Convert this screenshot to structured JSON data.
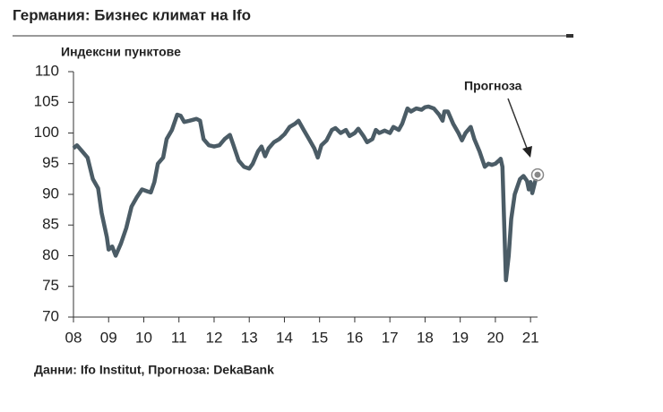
{
  "chart_data": {
    "type": "line",
    "title": "Германия: Бизнес климат на Ifo",
    "y_label": "Индексни пунктове",
    "source": "Данни: Ifo Institut, Прогноза: DekaBank",
    "annotation": "Прогноза",
    "color": "#4b5c66",
    "x": [
      2008.0,
      2008.1,
      2008.25,
      2008.4,
      2008.55,
      2008.7,
      2008.8,
      2008.95,
      2009.0,
      2009.1,
      2009.2,
      2009.35,
      2009.5,
      2009.65,
      2009.8,
      2009.95,
      2010.1,
      2010.2,
      2010.3,
      2010.4,
      2010.55,
      2010.65,
      2010.8,
      2010.95,
      2011.05,
      2011.15,
      2011.3,
      2011.5,
      2011.6,
      2011.7,
      2011.85,
      2012.0,
      2012.15,
      2012.3,
      2012.45,
      2012.55,
      2012.7,
      2012.85,
      2013.0,
      2013.1,
      2013.25,
      2013.35,
      2013.45,
      2013.55,
      2013.7,
      2013.85,
      2014.0,
      2014.15,
      2014.3,
      2014.4,
      2014.55,
      2014.7,
      2014.85,
      2014.95,
      2015.05,
      2015.2,
      2015.35,
      2015.45,
      2015.6,
      2015.75,
      2015.85,
      2016.0,
      2016.1,
      2016.25,
      2016.35,
      2016.5,
      2016.6,
      2016.7,
      2016.85,
      2017.0,
      2017.1,
      2017.25,
      2017.35,
      2017.5,
      2017.6,
      2017.75,
      2017.9,
      2018.0,
      2018.1,
      2018.25,
      2018.4,
      2018.5,
      2018.55,
      2018.65,
      2018.8,
      2018.95,
      2019.05,
      2019.15,
      2019.3,
      2019.4,
      2019.55,
      2019.7,
      2019.8,
      2019.9,
      2020.0,
      2020.1,
      2020.15,
      2020.2,
      2020.3,
      2020.38,
      2020.45,
      2020.55,
      2020.7,
      2020.8,
      2020.9,
      2020.95,
      2021.0,
      2021.05,
      2021.15
    ],
    "values": [
      97.5,
      98,
      97,
      96,
      92.5,
      91,
      87,
      83,
      81,
      81.5,
      80,
      82,
      84.5,
      88,
      89.5,
      90.8,
      90.5,
      90.3,
      92,
      95,
      96,
      99,
      100.5,
      103,
      102.8,
      101.8,
      102,
      102.3,
      102,
      99,
      98,
      97.8,
      98,
      99,
      99.7,
      98,
      95.5,
      94.5,
      94.2,
      95,
      97,
      97.8,
      96.2,
      97.5,
      98.5,
      99,
      99.8,
      101,
      101.5,
      102,
      100.5,
      99,
      97.5,
      96,
      98,
      98.8,
      100.5,
      100.8,
      100,
      100.5,
      99.5,
      100,
      100.7,
      99.5,
      98.5,
      99,
      100.5,
      100,
      100.4,
      100,
      101,
      100.5,
      101.5,
      104,
      103.5,
      104,
      103.8,
      104.2,
      104.3,
      104,
      103,
      102,
      103.5,
      103.5,
      101.5,
      100,
      98.8,
      100,
      101,
      99,
      97,
      94.5,
      95,
      94.8,
      95,
      95.5,
      95.8,
      94.5,
      76,
      80,
      86,
      90,
      92.5,
      93,
      92.2,
      90.8,
      92,
      90.2,
      92.5
    ],
    "forecast": {
      "x": 2021.2,
      "value": 93.2
    },
    "xlim": [
      2008,
      2021.2
    ],
    "xticks": [
      {
        "value": 2008,
        "label": "08"
      },
      {
        "value": 2009,
        "label": "09"
      },
      {
        "value": 2010,
        "label": "10"
      },
      {
        "value": 2011,
        "label": "11"
      },
      {
        "value": 2012,
        "label": "12"
      },
      {
        "value": 2013,
        "label": "13"
      },
      {
        "value": 2014,
        "label": "14"
      },
      {
        "value": 2015,
        "label": "15"
      },
      {
        "value": 2016,
        "label": "16"
      },
      {
        "value": 2017,
        "label": "17"
      },
      {
        "value": 2018,
        "label": "18"
      },
      {
        "value": 2019,
        "label": "19"
      },
      {
        "value": 2020,
        "label": "20"
      },
      {
        "value": 2021,
        "label": "21"
      }
    ],
    "ylim": [
      70,
      110
    ],
    "yticks": [
      70,
      75,
      80,
      85,
      90,
      95,
      100,
      105,
      110
    ]
  }
}
